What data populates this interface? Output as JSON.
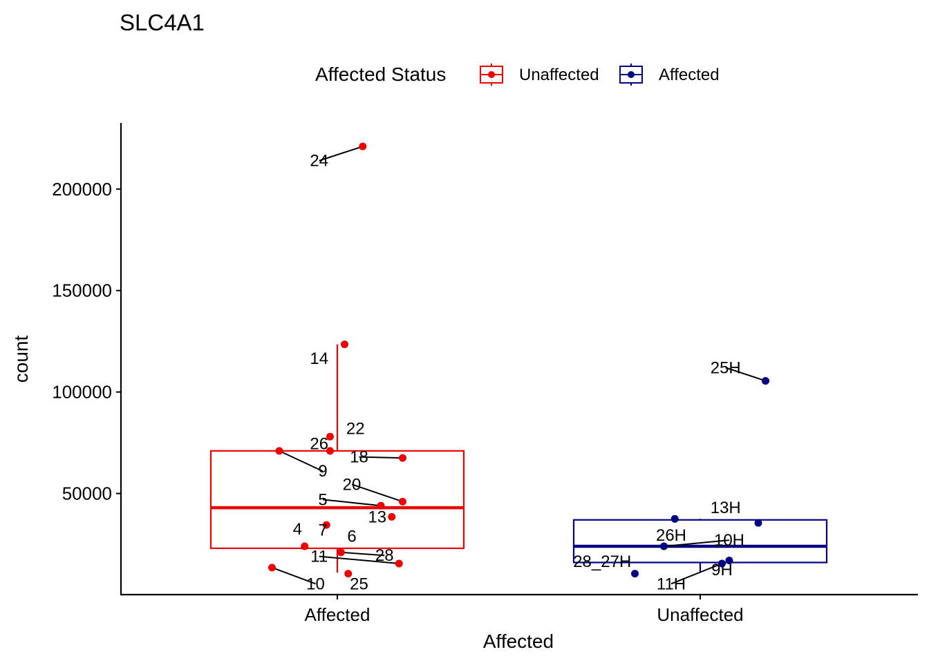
{
  "chart_data": {
    "type": "box",
    "title": "SLC4A1",
    "xlabel": "Affected",
    "ylabel": "count",
    "ylim": [
      0,
      230000
    ],
    "yticks": [
      50000,
      100000,
      150000,
      200000
    ],
    "categories": [
      "Affected",
      "Unaffected"
    ],
    "legend": {
      "title": "Affected Status",
      "placement": "top",
      "entries": [
        {
          "label": "Unaffected",
          "color": "#EE0000"
        },
        {
          "label": "Affected",
          "color": "#000080"
        }
      ]
    },
    "boxes": [
      {
        "category": "Affected",
        "color": "#EE0000",
        "lower_whisker": 11000,
        "q1": 23000,
        "median": 43000,
        "q3": 71000,
        "upper_whisker": 123500
      },
      {
        "category": "Unaffected",
        "color": "#000080",
        "lower_whisker": 11000,
        "q1": 16000,
        "median": 24000,
        "q3": 37000,
        "upper_whisker": 37500
      }
    ],
    "series": [
      {
        "category": "Affected",
        "color": "#EE0000",
        "points": [
          {
            "label": "24",
            "jitter": 0.07,
            "y": 221000,
            "lx": -0.05,
            "ly": 214000
          },
          {
            "label": "14",
            "jitter": 0.02,
            "y": 123500,
            "lx": -0.05,
            "ly": 116500
          },
          {
            "label": "22",
            "jitter": -0.02,
            "y": 78000,
            "lx": 0.05,
            "ly": 82000
          },
          {
            "label": "26",
            "jitter": -0.02,
            "y": 71000,
            "lx": -0.05,
            "ly": 74500
          },
          {
            "label": "18",
            "jitter": 0.18,
            "y": 67500,
            "lx": 0.06,
            "ly": 68000
          },
          {
            "label": "9",
            "jitter": -0.16,
            "y": 71000,
            "lx": -0.04,
            "ly": 61000
          },
          {
            "label": "20",
            "jitter": 0.18,
            "y": 46000,
            "lx": 0.04,
            "ly": 54500
          },
          {
            "label": "5",
            "jitter": 0.12,
            "y": 44000,
            "lx": -0.04,
            "ly": 47000
          },
          {
            "label": "13",
            "jitter": 0.15,
            "y": 38500,
            "lx": 0.11,
            "ly": 38500
          },
          {
            "label": "4",
            "jitter": -0.09,
            "y": 24000,
            "lx": -0.11,
            "ly": 32500
          },
          {
            "label": "7",
            "jitter": -0.03,
            "y": 34500,
            "lx": -0.04,
            "ly": 32000
          },
          {
            "label": "6",
            "jitter": 0.01,
            "y": 21000,
            "lx": 0.04,
            "ly": 29000
          },
          {
            "label": "11",
            "jitter": 0.17,
            "y": 15500,
            "lx": -0.05,
            "ly": 19000
          },
          {
            "label": "28",
            "jitter": 0.01,
            "y": 21000,
            "lx": 0.13,
            "ly": 19500
          },
          {
            "label": "10",
            "jitter": -0.18,
            "y": 13500,
            "lx": -0.06,
            "ly": 5500
          },
          {
            "label": "25",
            "jitter": 0.03,
            "y": 10500,
            "lx": 0.06,
            "ly": 5500
          }
        ]
      },
      {
        "category": "Unaffected",
        "color": "#000080",
        "points": [
          {
            "label": "25H",
            "jitter": 0.18,
            "y": 105500,
            "lx": 0.07,
            "ly": 112000
          },
          {
            "label": "13H",
            "jitter": 0.16,
            "y": 35500,
            "lx": 0.07,
            "ly": 43000
          },
          {
            "label": "26H",
            "jitter": -0.07,
            "y": 37500,
            "lx": -0.08,
            "ly": 29500
          },
          {
            "label": "10H",
            "jitter": -0.1,
            "y": 24000,
            "lx": 0.08,
            "ly": 27000
          },
          {
            "label": "28_27H",
            "jitter": -0.18,
            "y": 10500,
            "lx": -0.27,
            "ly": 16500
          },
          {
            "label": "9H",
            "jitter": 0.08,
            "y": 17000,
            "lx": 0.06,
            "ly": 12500
          },
          {
            "label": "11H",
            "jitter": 0.06,
            "y": 15500,
            "lx": -0.08,
            "ly": 5500
          }
        ]
      }
    ]
  }
}
